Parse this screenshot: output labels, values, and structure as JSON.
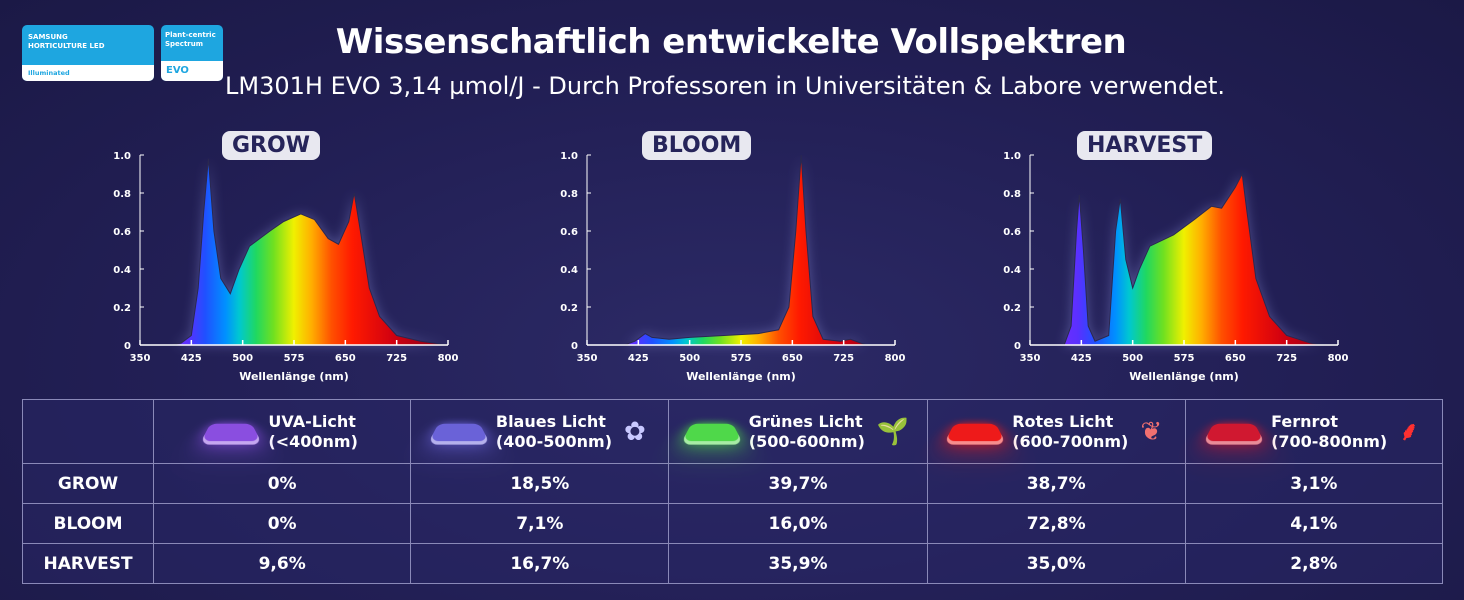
{
  "logos": {
    "samsung": {
      "line1": "SAMSUNG",
      "line2": "HORTICULTURE LED",
      "line3": "Illuminated"
    },
    "evo": {
      "line1": "Plant-centric",
      "line2": "Spectrum",
      "line3": "EVO"
    }
  },
  "header": {
    "title": "Wissenschaftlich entwickelte Vollspektren",
    "subtitle": "LM301H EVO 3,14 µmol/J - Durch Professoren in Universitäten & Labore verwendet."
  },
  "chart_data": [
    {
      "type": "area",
      "title": "GROW",
      "xlabel": "Wellenlänge (nm)",
      "xlim": [
        350,
        800
      ],
      "ylim": [
        0,
        1.0
      ],
      "xticks": [
        350,
        425,
        500,
        575,
        650,
        725,
        800
      ],
      "yticks": [
        "0",
        "0.2",
        "0.4",
        "0.6",
        "0.8",
        "1.0"
      ],
      "x": [
        395,
        410,
        425,
        435,
        443,
        450,
        458,
        468,
        482,
        495,
        510,
        540,
        560,
        585,
        605,
        625,
        640,
        655,
        663,
        672,
        685,
        700,
        725,
        760,
        800
      ],
      "y": [
        0,
        0.01,
        0.05,
        0.3,
        0.7,
        0.98,
        0.6,
        0.35,
        0.27,
        0.4,
        0.52,
        0.6,
        0.65,
        0.69,
        0.66,
        0.56,
        0.53,
        0.65,
        0.8,
        0.6,
        0.3,
        0.15,
        0.05,
        0.02,
        0
      ]
    },
    {
      "type": "area",
      "title": "BLOOM",
      "xlabel": "Wellenlänge (nm)",
      "xlim": [
        350,
        800
      ],
      "ylim": [
        0,
        1.0
      ],
      "xticks": [
        350,
        425,
        500,
        575,
        650,
        725,
        800
      ],
      "yticks": [
        "0",
        "0.2",
        "0.4",
        "0.6",
        "0.8",
        "1.0"
      ],
      "x": [
        405,
        420,
        435,
        445,
        470,
        500,
        550,
        600,
        630,
        645,
        655,
        663,
        670,
        680,
        695,
        720,
        735,
        750,
        760
      ],
      "y": [
        0,
        0.02,
        0.06,
        0.04,
        0.03,
        0.04,
        0.05,
        0.06,
        0.08,
        0.2,
        0.6,
        1.0,
        0.6,
        0.15,
        0.03,
        0.02,
        0.03,
        0.01,
        0
      ]
    },
    {
      "type": "area",
      "title": "HARVEST",
      "xlabel": "Wellenlänge (nm)",
      "xlim": [
        350,
        800
      ],
      "ylim": [
        0,
        1.0
      ],
      "xticks": [
        350,
        425,
        500,
        575,
        650,
        725,
        800
      ],
      "yticks": [
        "0",
        "0.2",
        "0.4",
        "0.6",
        "0.8",
        "1.0"
      ],
      "x": [
        400,
        410,
        418,
        422,
        428,
        435,
        445,
        465,
        475,
        482,
        490,
        500,
        510,
        525,
        560,
        590,
        615,
        630,
        650,
        660,
        667,
        680,
        700,
        725,
        760,
        780
      ],
      "y": [
        0,
        0.1,
        0.6,
        0.79,
        0.5,
        0.1,
        0.02,
        0.05,
        0.6,
        0.77,
        0.45,
        0.3,
        0.4,
        0.52,
        0.58,
        0.66,
        0.73,
        0.72,
        0.83,
        0.9,
        0.7,
        0.35,
        0.15,
        0.05,
        0.01,
        0
      ]
    }
  ],
  "table": {
    "columns": [
      {
        "line1": "UVA-Licht",
        "line2": "(<400nm)",
        "color": "#8a4ee0",
        "icon": "none"
      },
      {
        "line1": "Blaues Licht",
        "line2": "(400-500nm)",
        "color": "#6a62d8",
        "icon": "flower-icon",
        "glyph": "✿",
        "icon_color": "#c8c8ff"
      },
      {
        "line1": "Grünes Licht",
        "line2": "(500-600nm)",
        "color": "#4fd84a",
        "icon": "sprout-icon",
        "glyph": "🌱",
        "icon_color": "#5fe060"
      },
      {
        "line1": "Rotes Licht",
        "line2": "(600-700nm)",
        "color": "#ee1a1a",
        "icon": "seedling-icon",
        "glyph": "❦",
        "icon_color": "#f07070"
      },
      {
        "line1": "Fernrot",
        "line2": "(700-800nm)",
        "color": "#d01830",
        "icon": "branch-icon",
        "glyph": "⸙",
        "icon_color": "#ff3030"
      }
    ],
    "rows": [
      {
        "label": "GROW",
        "values": [
          "0%",
          "18,5%",
          "39,7%",
          "38,7%",
          "3,1%"
        ]
      },
      {
        "label": "BLOOM",
        "values": [
          "0%",
          "7,1%",
          "16,0%",
          "72,8%",
          "4,1%"
        ]
      },
      {
        "label": "HARVEST",
        "values": [
          "9,6%",
          "16,7%",
          "35,9%",
          "35,0%",
          "2,8%"
        ]
      }
    ]
  }
}
